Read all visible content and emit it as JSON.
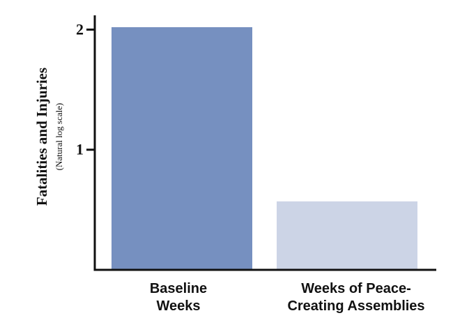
{
  "chart_data": {
    "type": "bar",
    "categories": [
      [
        "Baseline",
        "Weeks"
      ],
      [
        "Weeks of Peace-",
        "Creating Assemblies"
      ]
    ],
    "values": [
      2.02,
      0.57
    ],
    "ylim": [
      0,
      2.2
    ],
    "yticks": [
      1,
      2
    ],
    "ylabel": "Fatalities and Injuries",
    "ylabel_sub": "(Natural log scale)",
    "xlabel": "",
    "title": "",
    "grid": false,
    "legend": "none",
    "colors": [
      "#7690c0",
      "#ccd4e6"
    ]
  }
}
